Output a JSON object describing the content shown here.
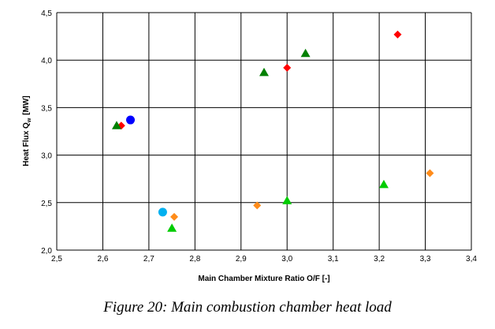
{
  "chart_data": {
    "type": "scatter",
    "title": "",
    "xlabel": "Main Chamber Mixture Ratio O/F  [-]",
    "ylabel": "Heat Flux  Q",
    "ylabel_sub": "w",
    "ylabel_unit": "[MW]",
    "xlim": [
      2.5,
      3.4
    ],
    "ylim": [
      2.0,
      4.5
    ],
    "x_ticks": [
      "2,5",
      "2,6",
      "2,7",
      "2,8",
      "2,9",
      "3,0",
      "3,1",
      "3,2",
      "3,3",
      "3,4"
    ],
    "y_ticks": [
      "2,0",
      "2,5",
      "3,0",
      "3,5",
      "4,0",
      "4,5"
    ],
    "grid": true,
    "series": [
      {
        "marker": "diamond",
        "color": "#ff0000",
        "points": [
          [
            2.64,
            3.31
          ],
          [
            3.0,
            3.92
          ],
          [
            3.24,
            4.27
          ]
        ]
      },
      {
        "marker": "triangle",
        "color": "#008000",
        "points": [
          [
            2.63,
            3.31
          ],
          [
            2.95,
            3.87
          ],
          [
            3.04,
            4.07
          ]
        ]
      },
      {
        "marker": "circle",
        "color": "#0000ff",
        "points": [
          [
            2.66,
            3.37
          ]
        ]
      },
      {
        "marker": "circle",
        "color": "#00b0f0",
        "points": [
          [
            2.73,
            2.4
          ]
        ]
      },
      {
        "marker": "diamond",
        "color": "#ff8c1a",
        "points": [
          [
            2.755,
            2.35
          ],
          [
            2.935,
            2.47
          ],
          [
            3.31,
            2.81
          ]
        ]
      },
      {
        "marker": "triangle",
        "color": "#00cc00",
        "points": [
          [
            2.75,
            2.23
          ],
          [
            3.0,
            2.52
          ],
          [
            3.21,
            2.69
          ]
        ]
      }
    ]
  },
  "caption": "Figure  20: Main combustion chamber heat load"
}
